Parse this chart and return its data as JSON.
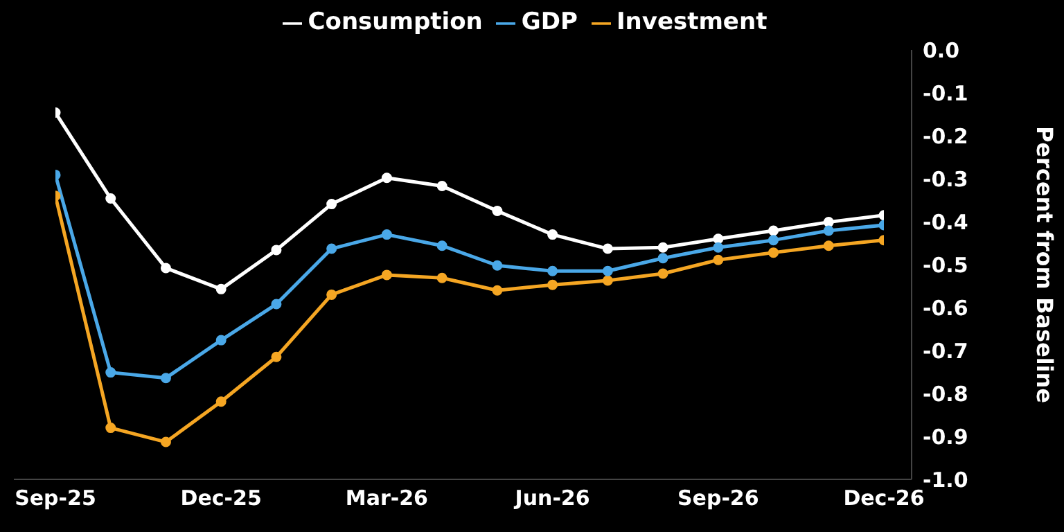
{
  "chart_data": {
    "type": "line",
    "ylabel": "Percent from Baseline",
    "categories": [
      "Sep-25",
      null,
      null,
      "Dec-25",
      null,
      null,
      "Mar-26",
      null,
      null,
      "Jun-26",
      null,
      null,
      "Sep-26",
      null,
      null,
      "Dec-26"
    ],
    "series": [
      {
        "name": "Consumption",
        "color": "#ffffff",
        "values": [
          -0.146,
          -0.346,
          -0.508,
          -0.557,
          -0.466,
          -0.359,
          -0.298,
          -0.317,
          -0.375,
          -0.43,
          -0.463,
          -0.46,
          -0.44,
          -0.421,
          -0.401,
          -0.385
        ]
      },
      {
        "name": "Investment",
        "color": "#f5a623",
        "values": [
          -0.34,
          -0.88,
          -0.913,
          -0.819,
          -0.715,
          -0.57,
          -0.524,
          -0.531,
          -0.56,
          -0.547,
          -0.537,
          -0.521,
          -0.489,
          -0.472,
          -0.456,
          -0.443
        ]
      },
      {
        "name": "GDP",
        "color": "#4aa8e8",
        "values": [
          -0.291,
          -0.751,
          -0.764,
          -0.676,
          -0.592,
          -0.463,
          -0.43,
          -0.456,
          -0.502,
          -0.515,
          -0.515,
          -0.485,
          -0.46,
          -0.443,
          -0.421,
          -0.408
        ]
      }
    ],
    "ylim": [
      -1.0,
      0.0
    ],
    "yticks": [
      {
        "value": -1.0,
        "label": "-1.0"
      },
      {
        "value": -0.9,
        "label": "-0.9"
      },
      {
        "value": -0.8,
        "label": "-0.8"
      },
      {
        "value": -0.7,
        "label": "-0.7"
      },
      {
        "value": -0.6,
        "label": "-0.6"
      },
      {
        "value": -0.5,
        "label": "-0.5"
      },
      {
        "value": -0.4,
        "label": "-0.4"
      },
      {
        "value": -0.3,
        "label": "-0.3"
      },
      {
        "value": -0.2,
        "label": "-0.2"
      },
      {
        "value": -0.1,
        "label": "-0.1"
      },
      {
        "value": 0.0,
        "label": "0.0"
      }
    ],
    "grid": false,
    "legend": "top",
    "marker": "circle",
    "line_style": "solid"
  }
}
